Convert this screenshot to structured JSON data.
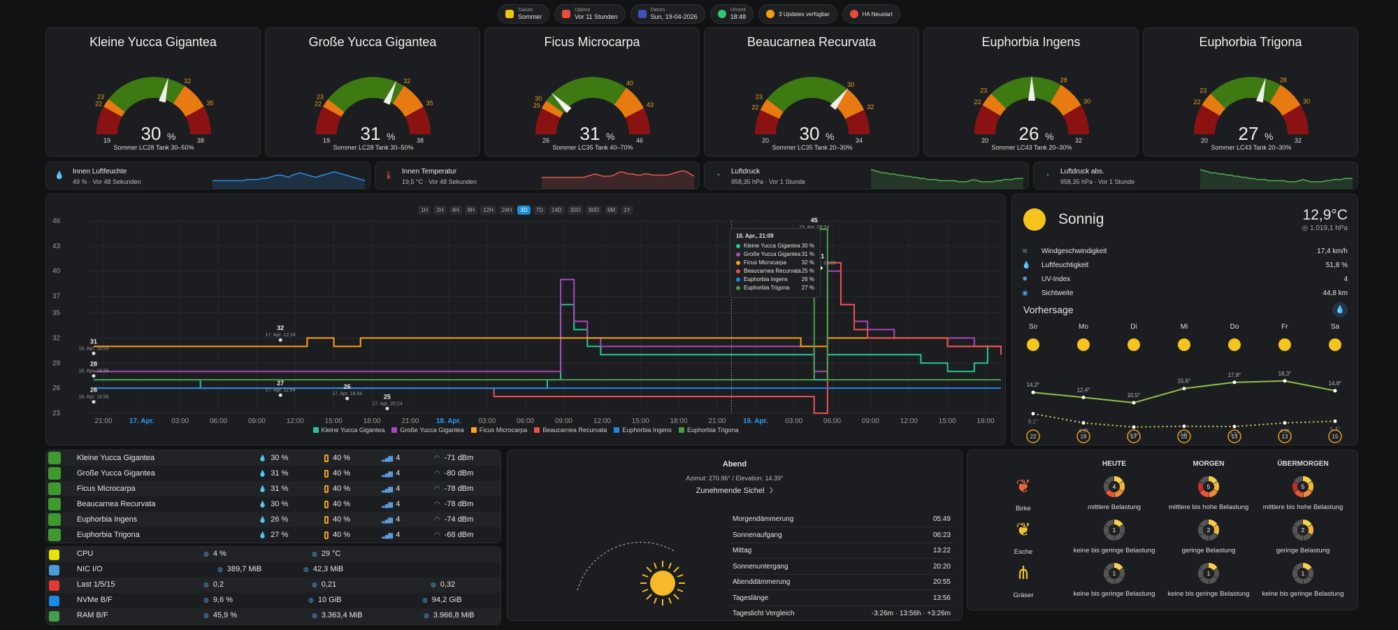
{
  "top_chips": [
    {
      "label": "Saison",
      "value": "Sommer",
      "color": "#f1c40f"
    },
    {
      "label": "Uptime",
      "value": "Vor 11 Stunden",
      "color": "#e74c3c"
    },
    {
      "label": "Datum",
      "value": "Sun, 19-04-2026",
      "color": "#3f51b5"
    },
    {
      "label": "Uhrzeit",
      "value": "18:48",
      "color": "#2ecc71"
    },
    {
      "label": "",
      "value": "3 Updates verfügbar",
      "color": "#f39c12"
    },
    {
      "label": "",
      "value": "HA Neustart",
      "color": "#e74c3c"
    }
  ],
  "gauges": [
    {
      "title": "Kleine Yucca Gigantea",
      "value": "30",
      "unit": "%",
      "sub": "Sommer LC28 Tank 30–50%",
      "min": "19",
      "max": "38",
      "t1": "22",
      "t2": "23",
      "t3": "32",
      "t4": "35",
      "frac": 0.58,
      "b": [
        0.16,
        0.21,
        0.68,
        0.84
      ]
    },
    {
      "title": "Große Yucca Gigantea",
      "value": "31",
      "unit": "%",
      "sub": "Sommer LC28 Tank 30–50%",
      "min": "19",
      "max": "38",
      "t1": "22",
      "t2": "23",
      "t3": "32",
      "t4": "35",
      "frac": 0.63,
      "b": [
        0.16,
        0.21,
        0.68,
        0.84
      ]
    },
    {
      "title": "Ficus Microcarpa",
      "value": "31",
      "unit": "%",
      "sub": "Sommer LC35 Tank 40–70%",
      "min": "26",
      "max": "46",
      "t1": "29",
      "t2": "30",
      "t3": "40",
      "t4": "43",
      "frac": 0.25,
      "b": [
        0.15,
        0.2,
        0.7,
        0.85
      ]
    },
    {
      "title": "Beaucarnea Recurvata",
      "value": "30",
      "unit": "%",
      "sub": "Sommer LC35 Tank 20–30%",
      "min": "20",
      "max": "34",
      "t1": "22",
      "t2": "23",
      "t3": "30",
      "t4": "32",
      "frac": 0.71,
      "b": [
        0.14,
        0.21,
        0.71,
        0.86
      ]
    },
    {
      "title": "Euphorbia Ingens",
      "value": "26",
      "unit": "%",
      "sub": "Sommer LC43 Tank 20–30%",
      "min": "20",
      "max": "32",
      "t1": "22",
      "t2": "23",
      "t3": "28",
      "t4": "30",
      "frac": 0.5,
      "b": [
        0.17,
        0.25,
        0.67,
        0.83
      ]
    },
    {
      "title": "Euphorbia Trigona",
      "value": "27",
      "unit": "%",
      "sub": "Sommer LC43 Tank 20–30%",
      "min": "20",
      "max": "32",
      "t1": "22",
      "t2": "23",
      "t3": "28",
      "t4": "30",
      "frac": 0.58,
      "b": [
        0.17,
        0.25,
        0.67,
        0.83
      ]
    }
  ],
  "sensors": [
    {
      "name": "Innen Luftfeuchte",
      "sub": "49 % · Vor 48 Sekunden",
      "color": "#2f8fe0",
      "pts": [
        6,
        6,
        6,
        6,
        6,
        6,
        6,
        6,
        6,
        7,
        7,
        7,
        7,
        8,
        8,
        9,
        10,
        11,
        11,
        10,
        9,
        11,
        12,
        13,
        12,
        11,
        10,
        9,
        10,
        11,
        12,
        13,
        14,
        13,
        12,
        11,
        10,
        9,
        8,
        7,
        6
      ]
    },
    {
      "name": "Innen Temperatur",
      "sub": "19,5 °C · Vor 48 Sekunden",
      "color": "#e05a4f",
      "pts": [
        9,
        9,
        9,
        9,
        9,
        9,
        9,
        9,
        9,
        9,
        9,
        9,
        10,
        11,
        12,
        11,
        10,
        10,
        10,
        11,
        13,
        14,
        13,
        12,
        12,
        11,
        11,
        12,
        12,
        11,
        11,
        11,
        11,
        11,
        12,
        13,
        14,
        15,
        14,
        12,
        10
      ]
    },
    {
      "name": "Luftdruck",
      "sub": "958,35 hPa · Vor 1 Stunde",
      "color": "#4caf50",
      "pts": [
        16,
        15,
        14,
        13,
        13,
        12,
        12,
        11,
        11,
        10,
        10,
        9,
        9,
        8,
        8,
        7,
        7,
        7,
        6,
        6,
        6,
        6,
        6,
        5,
        5,
        5,
        6,
        7,
        6,
        5,
        5,
        5,
        5,
        6,
        6,
        7,
        7,
        7,
        8,
        8,
        8
      ]
    },
    {
      "name": "Luftdruck abs.",
      "sub": "958,35 hPa · Vor 1 Stunde",
      "color": "#4caf50",
      "pts": [
        16,
        15,
        14,
        13,
        13,
        12,
        12,
        11,
        11,
        10,
        10,
        9,
        9,
        8,
        8,
        7,
        7,
        7,
        6,
        6,
        6,
        6,
        6,
        5,
        5,
        5,
        6,
        7,
        6,
        5,
        5,
        5,
        5,
        6,
        6,
        7,
        7,
        7,
        8,
        8,
        8
      ]
    }
  ],
  "chart_data": {
    "type": "line",
    "range_buttons": [
      "1H",
      "2H",
      "4H",
      "8H",
      "12H",
      "24H",
      "3D",
      "7D",
      "14D",
      "30D",
      "90D",
      "6M",
      "1Y"
    ],
    "active_range": "3D",
    "ylim": [
      23,
      46
    ],
    "y_ticks": [
      46,
      43,
      40,
      37,
      35,
      32,
      29,
      26,
      23
    ],
    "x_ticks": [
      "21:00",
      "17. Apr.",
      "03:00",
      "06:00",
      "09:00",
      "12:00",
      "15:00",
      "18:00",
      "21:00",
      "18. Apr.",
      "03:00",
      "06:00",
      "09:00",
      "12:00",
      "15:00",
      "18:00",
      "21:00",
      "19. Apr.",
      "03:00",
      "06:00",
      "09:00",
      "12:00",
      "15:00",
      "18:00"
    ],
    "x_ticks_highlight": [
      1,
      9,
      17
    ],
    "xlim": [
      0,
      68
    ],
    "series": [
      {
        "name": "Kleine Yucca Gigantea",
        "color": "#26c6a0",
        "x": [
          0,
          3,
          6,
          7,
          8,
          9,
          10,
          20,
          24,
          30,
          33,
          34,
          35,
          36,
          37,
          38,
          39,
          43,
          52,
          53,
          54,
          55,
          56,
          58,
          62,
          64,
          66,
          67,
          68
        ],
        "y": [
          27,
          27,
          27,
          27,
          26,
          26,
          26,
          26,
          26,
          26,
          26,
          27,
          36,
          33,
          31,
          30,
          30,
          30,
          30,
          30,
          27,
          30,
          30,
          30,
          29,
          28,
          29,
          31,
          30
        ]
      },
      {
        "name": "Große Yucca Gigantea",
        "color": "#ab47bc",
        "x": [
          0,
          3,
          6,
          20,
          24,
          30,
          33,
          34,
          35,
          36,
          37,
          38,
          39,
          43,
          52,
          53,
          54,
          55,
          56,
          57,
          58,
          60,
          62,
          64,
          66,
          67,
          68
        ],
        "y": [
          28,
          28,
          28,
          28,
          28,
          28,
          28,
          28,
          39,
          34,
          32,
          31,
          31,
          31,
          31,
          31,
          28,
          40,
          36,
          34,
          33,
          32,
          32,
          32,
          31,
          31,
          30
        ]
      },
      {
        "name": "Ficus Microcarpa",
        "color": "#ff9f1c",
        "x": [
          0,
          6,
          12,
          14,
          16,
          18,
          20,
          24,
          30,
          36,
          40,
          43,
          46,
          52,
          53,
          54,
          55,
          56,
          60,
          62,
          64,
          66,
          68
        ],
        "y": [
          31,
          31,
          31,
          31,
          32,
          31,
          32,
          32,
          32,
          32,
          32,
          32,
          32,
          32,
          31,
          31,
          32,
          32,
          32,
          32,
          31,
          31,
          31
        ]
      },
      {
        "name": "Beaucarnea Recurvata",
        "color": "#ef4f4f",
        "x": [
          0,
          6,
          12,
          20,
          24,
          28,
          30,
          33,
          34,
          35,
          36,
          37,
          38,
          43,
          52,
          53,
          54,
          55,
          56,
          57,
          58,
          60,
          62,
          64,
          66,
          68
        ],
        "y": [
          26,
          26,
          26,
          26,
          26,
          26,
          25,
          25,
          25,
          25,
          25,
          25,
          25,
          25,
          25,
          25,
          23,
          41,
          36,
          33,
          32,
          32,
          32,
          31,
          31,
          30
        ]
      },
      {
        "name": "Euphorbia Ingens",
        "color": "#1e88e5",
        "x": [
          0,
          10,
          20,
          30,
          40,
          50,
          60,
          68
        ],
        "y": [
          26,
          26,
          26,
          26,
          26,
          26,
          26,
          26
        ]
      },
      {
        "name": "Euphorbia Trigona",
        "color": "#43a047",
        "x": [
          0,
          4,
          10,
          20,
          30,
          40,
          50,
          52,
          53,
          54,
          55,
          60,
          68
        ],
        "y": [
          27,
          27,
          27,
          27,
          27,
          27,
          27,
          27,
          27,
          45,
          27,
          27,
          27
        ]
      }
    ],
    "point_labels": [
      {
        "text": "31",
        "sub": "16. Apr. 18:39",
        "x": 0,
        "y": 31
      },
      {
        "text": "28",
        "sub": "16. Apr. 18:39",
        "x": 0,
        "y": 28.3
      },
      {
        "text": "26",
        "sub": "16. Apr. 18:39",
        "x": 0,
        "y": 25.2
      },
      {
        "text": "32",
        "sub": "17. Apr. 12:24",
        "x": 14,
        "y": 32.6
      },
      {
        "text": "27",
        "sub": "17. Apr. 11:54",
        "x": 14,
        "y": 26
      },
      {
        "text": "26",
        "sub": "17. Apr. 16:54",
        "x": 19,
        "y": 25.6
      },
      {
        "text": "25",
        "sub": "17. Apr. 20:24",
        "x": 22,
        "y": 24.4
      },
      {
        "text": "45",
        "sub": "19. Apr. 08:54",
        "x": 54,
        "y": 45.5
      },
      {
        "text": "41",
        "sub": "19. Apr. 09:09",
        "x": 54.5,
        "y": 41.2
      }
    ],
    "tooltip": {
      "title": "18. Apr., 21:09",
      "rows": [
        {
          "name": "Kleine Yucca Gigantea",
          "value": "30 %",
          "color": "#26c6a0"
        },
        {
          "name": "Große Yucca Gigantea",
          "value": "31 %",
          "color": "#ab47bc"
        },
        {
          "name": "Ficus Microcarpa",
          "value": "32 %",
          "color": "#ff9f1c"
        },
        {
          "name": "Beaucarnea Recurvata",
          "value": "25 %",
          "color": "#ef4f4f"
        },
        {
          "name": "Euphorbia Ingens",
          "value": "26 %",
          "color": "#1e88e5"
        },
        {
          "name": "Euphorbia Trigona",
          "value": "27 %",
          "color": "#43a047"
        }
      ]
    },
    "crosshair_x": 47.8
  },
  "weather": {
    "condition": "Sonnig",
    "temp": "12,9°C",
    "pressure": "1.019,1 hPa",
    "rows": [
      {
        "label": "Windgeschwindigkeit",
        "value": "17,4 km/h"
      },
      {
        "label": "Luftfeuchtigkeit",
        "value": "51,8 %"
      },
      {
        "label": "UV-Index",
        "value": "4"
      },
      {
        "label": "Sichtweite",
        "value": "44,8 km"
      }
    ],
    "forecast_title": "Vorhersage",
    "days": [
      "So",
      "Mo",
      "Di",
      "Mi",
      "Do",
      "Fr",
      "Sa"
    ],
    "highs": [
      "14,2°",
      "12,4°",
      "10,5°",
      "15,6°",
      "17,8°",
      "18,3°",
      "14,8°"
    ],
    "lows": [
      "8,1°",
      "4,8°",
      "3,3°",
      "3,6°",
      "3,5°",
      "4,8°",
      "5,4°"
    ],
    "high_vals": [
      14.2,
      12.4,
      10.5,
      15.6,
      17.8,
      18.3,
      14.8
    ],
    "low_vals": [
      8.1,
      4.8,
      3.3,
      3.6,
      3.5,
      4.8,
      5.4
    ],
    "winds": [
      "22",
      "19",
      "17",
      "20",
      "13",
      "13",
      "15"
    ]
  },
  "plants": [
    {
      "name": "Kleine Yucca Gigantea",
      "moist": "30 %",
      "battery": "40 %",
      "signal": "4",
      "rssi": "-71 dBm"
    },
    {
      "name": "Große Yucca Gigantea",
      "moist": "31 %",
      "battery": "40 %",
      "signal": "4",
      "rssi": "-80 dBm"
    },
    {
      "name": "Ficus Microcarpa",
      "moist": "31 %",
      "battery": "40 %",
      "signal": "4",
      "rssi": "-78 dBm"
    },
    {
      "name": "Beaucarnea Recurvata",
      "moist": "30 %",
      "battery": "40 %",
      "signal": "4",
      "rssi": "-78 dBm"
    },
    {
      "name": "Euphorbia Ingens",
      "moist": "26 %",
      "battery": "40 %",
      "signal": "4",
      "rssi": "-74 dBm"
    },
    {
      "name": "Euphorbia Trigona",
      "moist": "27 %",
      "battery": "40 %",
      "signal": "4",
      "rssi": "-68 dBm"
    }
  ],
  "system": [
    {
      "name": "CPU",
      "a": "4 %",
      "b": "29 °C",
      "c": "",
      "color": "#e6e600"
    },
    {
      "name": "NIC I/O",
      "a": "",
      "b": "389,7 MiB",
      "c": "42,3 MiB",
      "color": "#4a9bd8"
    },
    {
      "name": "Last 1/5/15",
      "a": "0,2",
      "b": "0,21",
      "c": "0,32",
      "color": "#e53935"
    },
    {
      "name": "NVMe B/F",
      "a": "9,6 %",
      "b": "10 GiB",
      "c": "94,2 GiB",
      "color": "#1e88e5"
    },
    {
      "name": "RAM B/F",
      "a": "45,9 %",
      "b": "3.363,4 MiB",
      "c": "3.966,8 MiB",
      "color": "#43a047"
    }
  ],
  "sun": {
    "phase": "Abend",
    "position": "Azimut: 270.96° / Elevation: 14.39°",
    "moon": "Zunehmende Sichel",
    "rows": [
      {
        "label": "Morgendämmerung",
        "value": "05:49"
      },
      {
        "label": "Sonnenaufgang",
        "value": "06:23"
      },
      {
        "label": "Mittag",
        "value": "13:22"
      },
      {
        "label": "Sonnenuntergang",
        "value": "20:20"
      },
      {
        "label": "Abenddämmerung",
        "value": "20:55"
      },
      {
        "label": "Tageslänge",
        "value": "13:56"
      },
      {
        "label": "Tageslicht Vergleich",
        "value": "-3:26m · 13:56h · +3:26m"
      }
    ]
  },
  "pollen": {
    "headers": [
      "HEUTE",
      "MORGEN",
      "ÜBERMORGEN"
    ],
    "rows": [
      {
        "name": "Birke",
        "color": "#e8683a",
        "levels": [
          "4",
          "5",
          "5"
        ],
        "fill": [
          4,
          5,
          5
        ],
        "texts": [
          "mittlere Belastung",
          "mittlere bis hohe Belastung",
          "mittlere bis hohe Belastung"
        ]
      },
      {
        "name": "Esche",
        "color": "#f2c230",
        "levels": [
          "1",
          "2",
          "2"
        ],
        "fill": [
          1,
          2,
          2
        ],
        "texts": [
          "keine bis geringe Belastung",
          "geringe Belastung",
          "geringe Belastung"
        ]
      },
      {
        "name": "Gräser",
        "color": "#f2c230",
        "levels": [
          "1",
          "1",
          "1"
        ],
        "fill": [
          1,
          1,
          1
        ],
        "texts": [
          "keine bis geringe Belastung",
          "keine bis geringe Belastung",
          "keine bis geringe Belastung"
        ]
      }
    ]
  }
}
